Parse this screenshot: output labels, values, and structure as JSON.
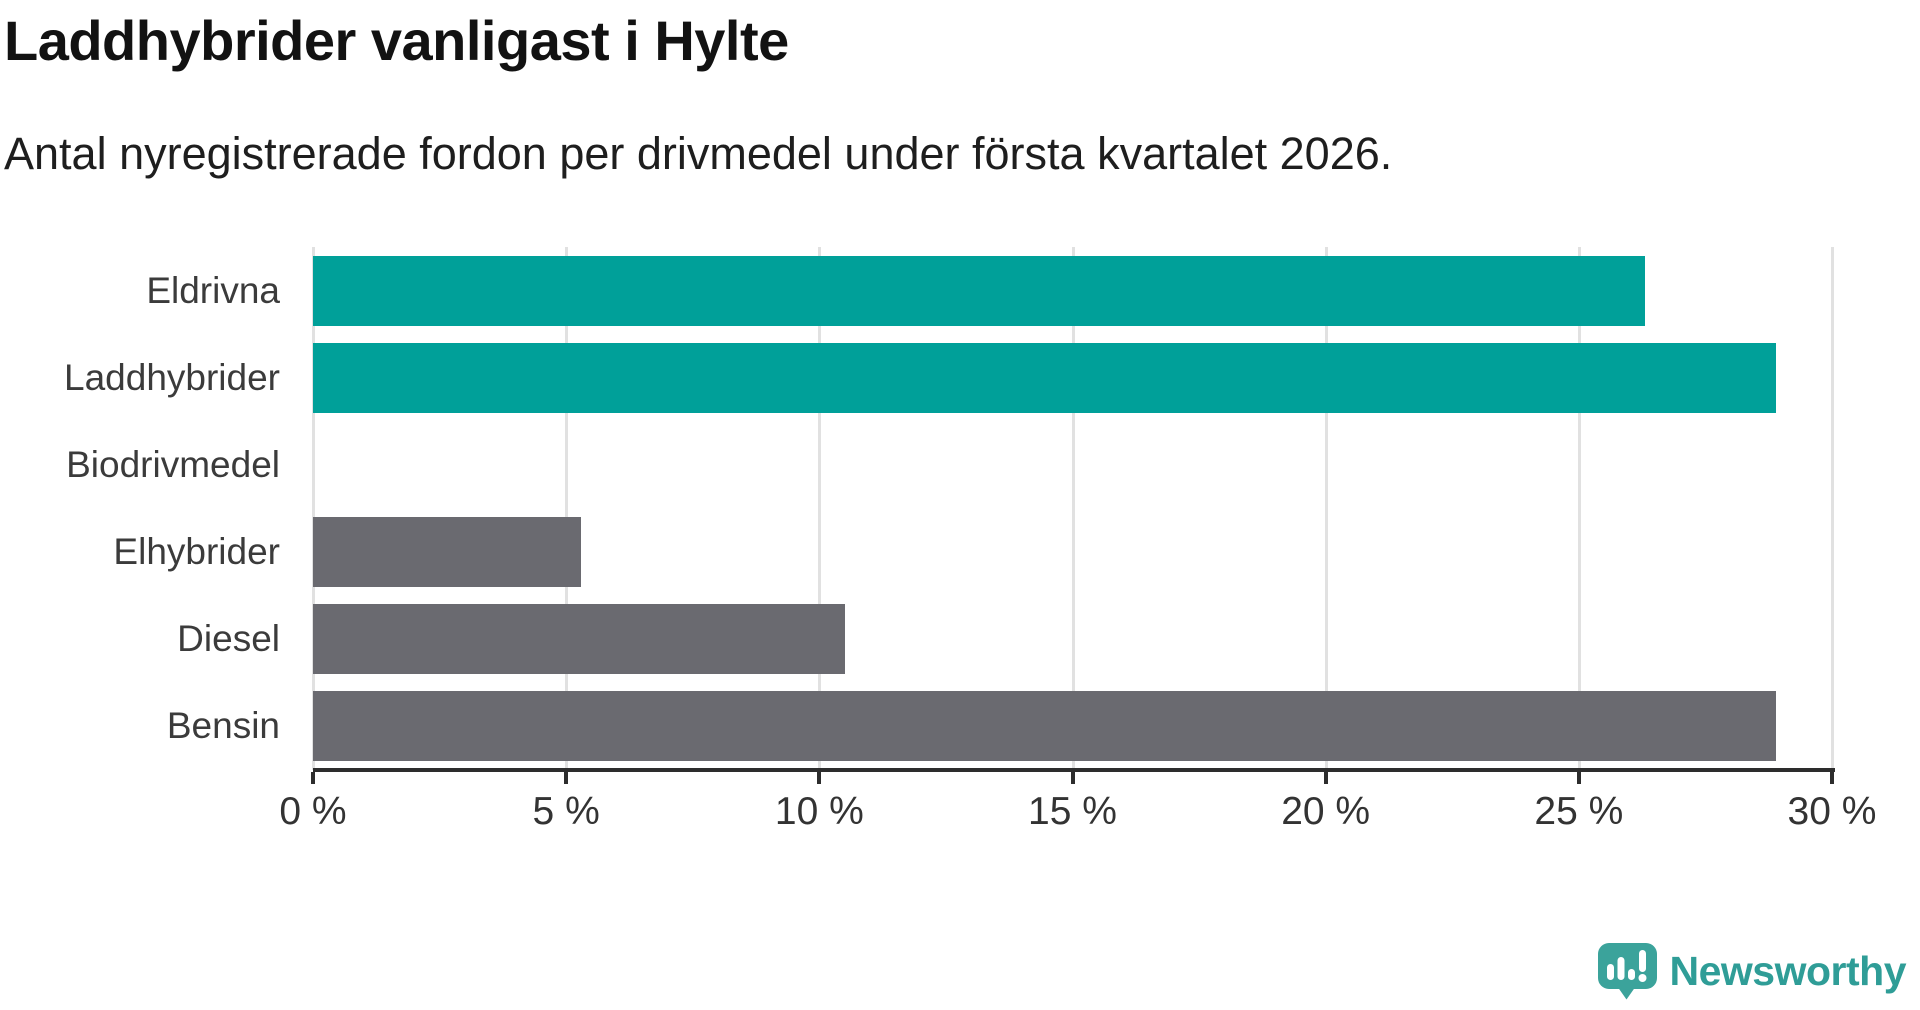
{
  "chart_data": {
    "type": "bar",
    "orientation": "horizontal",
    "title": "Laddhybrider vanligast i Hylte",
    "subtitle": "Antal nyregistrerade fordon per drivmedel under första kvartalet 2026.",
    "categories": [
      "Eldrivna",
      "Laddhybrider",
      "Biodrivmedel",
      "Elhybrider",
      "Diesel",
      "Bensin"
    ],
    "values": [
      26.3,
      28.9,
      0,
      5.3,
      10.5,
      28.9
    ],
    "value_unit": "percent",
    "xlabel": "",
    "ylabel": "",
    "xlim": [
      0,
      30
    ],
    "x_tick_values": [
      0,
      5,
      10,
      15,
      20,
      25,
      30
    ],
    "x_tick_labels": [
      "0 %",
      "5 %",
      "10 %",
      "15 %",
      "20 %",
      "25 %",
      "30 %"
    ],
    "grid": true,
    "legend": false,
    "colors": {
      "highlight": "#00a099",
      "default": "#6a6a70"
    },
    "bar_color_roles": [
      "highlight",
      "highlight",
      "default",
      "default",
      "default",
      "default"
    ],
    "gridline_color": "#e1e1e1",
    "axis_color": "#2d2d2d"
  },
  "branding": {
    "logo_text": "Newsworthy",
    "logo_text_color": "#2f9d97",
    "logo_icon_color": "#3ba39b",
    "logo_icon": "newsworthy-chart-bubble-icon"
  }
}
